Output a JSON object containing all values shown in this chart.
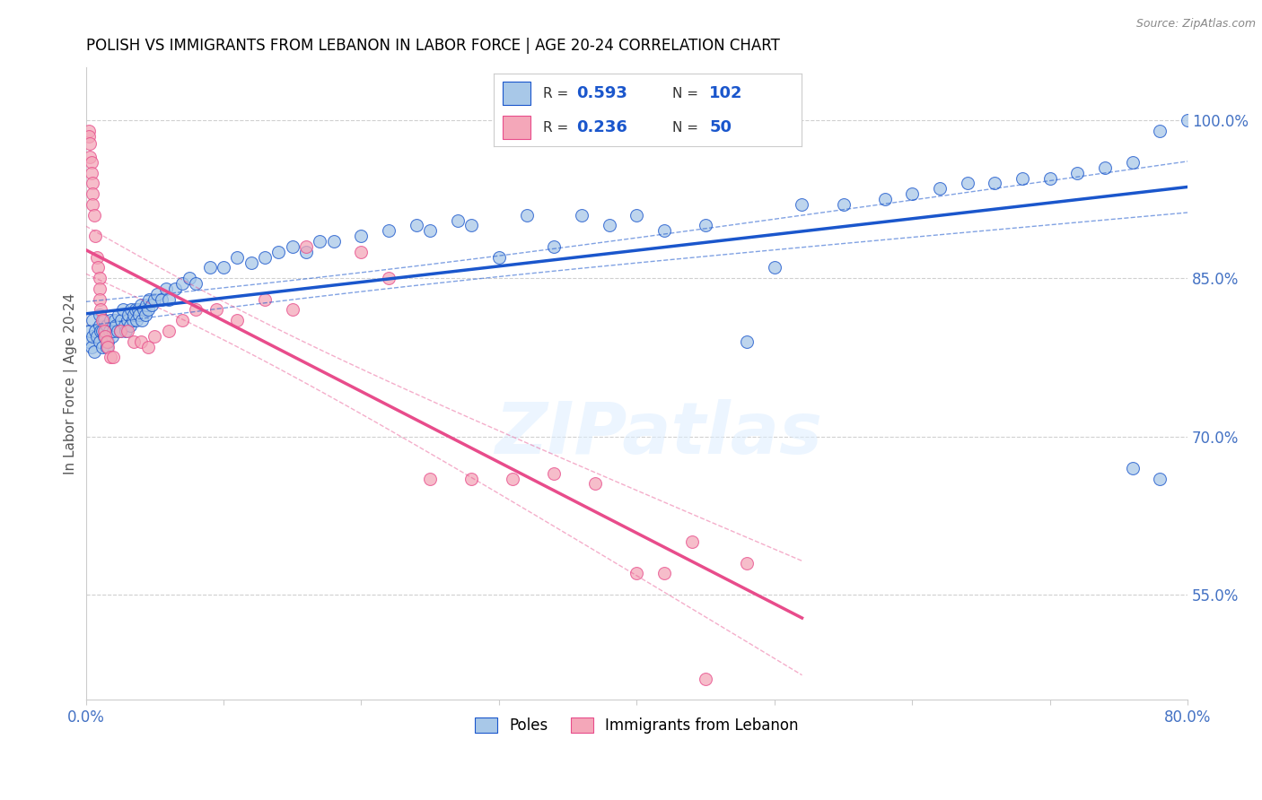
{
  "title": "POLISH VS IMMIGRANTS FROM LEBANON IN LABOR FORCE | AGE 20-24 CORRELATION CHART",
  "source": "Source: ZipAtlas.com",
  "ylabel": "In Labor Force | Age 20-24",
  "xlim": [
    0.0,
    0.8
  ],
  "ylim": [
    0.45,
    1.05
  ],
  "yticks": [
    0.55,
    0.7,
    0.85,
    1.0
  ],
  "ytick_labels": [
    "55.0%",
    "70.0%",
    "85.0%",
    "100.0%"
  ],
  "blue_R": 0.593,
  "blue_N": 102,
  "pink_R": 0.236,
  "pink_N": 50,
  "blue_color": "#a8c8e8",
  "pink_color": "#f4a7b9",
  "trend_blue": "#1a56cc",
  "trend_pink": "#e84c8b",
  "axis_color": "#4472c4",
  "title_color": "#000000",
  "background_color": "#ffffff",
  "watermark": "ZIPatlas",
  "blue_scatter_x": [
    0.002,
    0.003,
    0.004,
    0.005,
    0.005,
    0.006,
    0.007,
    0.008,
    0.01,
    0.01,
    0.01,
    0.011,
    0.012,
    0.012,
    0.013,
    0.013,
    0.014,
    0.015,
    0.015,
    0.016,
    0.017,
    0.018,
    0.019,
    0.02,
    0.021,
    0.022,
    0.023,
    0.024,
    0.025,
    0.026,
    0.027,
    0.028,
    0.029,
    0.03,
    0.031,
    0.032,
    0.033,
    0.034,
    0.035,
    0.036,
    0.037,
    0.038,
    0.039,
    0.04,
    0.041,
    0.042,
    0.043,
    0.044,
    0.045,
    0.046,
    0.048,
    0.05,
    0.052,
    0.055,
    0.058,
    0.06,
    0.065,
    0.07,
    0.075,
    0.08,
    0.09,
    0.1,
    0.11,
    0.12,
    0.13,
    0.14,
    0.15,
    0.16,
    0.17,
    0.18,
    0.2,
    0.22,
    0.24,
    0.25,
    0.27,
    0.28,
    0.3,
    0.32,
    0.34,
    0.36,
    0.38,
    0.4,
    0.42,
    0.45,
    0.48,
    0.5,
    0.52,
    0.55,
    0.58,
    0.6,
    0.62,
    0.64,
    0.66,
    0.68,
    0.7,
    0.72,
    0.74,
    0.76,
    0.78,
    0.8,
    0.76,
    0.78
  ],
  "blue_scatter_y": [
    0.79,
    0.8,
    0.785,
    0.81,
    0.795,
    0.78,
    0.8,
    0.795,
    0.79,
    0.805,
    0.815,
    0.8,
    0.785,
    0.8,
    0.81,
    0.795,
    0.8,
    0.785,
    0.805,
    0.79,
    0.8,
    0.81,
    0.795,
    0.8,
    0.81,
    0.805,
    0.8,
    0.815,
    0.8,
    0.81,
    0.82,
    0.805,
    0.8,
    0.81,
    0.815,
    0.805,
    0.82,
    0.81,
    0.815,
    0.82,
    0.81,
    0.82,
    0.815,
    0.825,
    0.81,
    0.82,
    0.815,
    0.825,
    0.82,
    0.83,
    0.825,
    0.83,
    0.835,
    0.83,
    0.84,
    0.83,
    0.84,
    0.845,
    0.85,
    0.845,
    0.86,
    0.86,
    0.87,
    0.865,
    0.87,
    0.875,
    0.88,
    0.875,
    0.885,
    0.885,
    0.89,
    0.895,
    0.9,
    0.895,
    0.905,
    0.9,
    0.87,
    0.91,
    0.88,
    0.91,
    0.9,
    0.91,
    0.895,
    0.9,
    0.79,
    0.86,
    0.92,
    0.92,
    0.925,
    0.93,
    0.935,
    0.94,
    0.94,
    0.945,
    0.945,
    0.95,
    0.955,
    0.96,
    0.99,
    1.0,
    0.67,
    0.66
  ],
  "pink_scatter_x": [
    0.002,
    0.002,
    0.003,
    0.003,
    0.004,
    0.004,
    0.005,
    0.005,
    0.005,
    0.006,
    0.007,
    0.008,
    0.009,
    0.01,
    0.01,
    0.01,
    0.011,
    0.012,
    0.013,
    0.014,
    0.015,
    0.016,
    0.018,
    0.02,
    0.025,
    0.03,
    0.035,
    0.04,
    0.045,
    0.05,
    0.06,
    0.07,
    0.08,
    0.095,
    0.11,
    0.13,
    0.15,
    0.16,
    0.2,
    0.22,
    0.25,
    0.28,
    0.31,
    0.34,
    0.37,
    0.4,
    0.42,
    0.44,
    0.45,
    0.48
  ],
  "pink_scatter_y": [
    0.99,
    0.985,
    0.978,
    0.965,
    0.96,
    0.95,
    0.94,
    0.93,
    0.92,
    0.91,
    0.89,
    0.87,
    0.86,
    0.85,
    0.84,
    0.83,
    0.82,
    0.81,
    0.8,
    0.795,
    0.79,
    0.785,
    0.775,
    0.775,
    0.8,
    0.8,
    0.79,
    0.79,
    0.785,
    0.795,
    0.8,
    0.81,
    0.82,
    0.82,
    0.81,
    0.83,
    0.82,
    0.88,
    0.875,
    0.85,
    0.66,
    0.66,
    0.66,
    0.665,
    0.655,
    0.57,
    0.57,
    0.6,
    0.47,
    0.58
  ]
}
